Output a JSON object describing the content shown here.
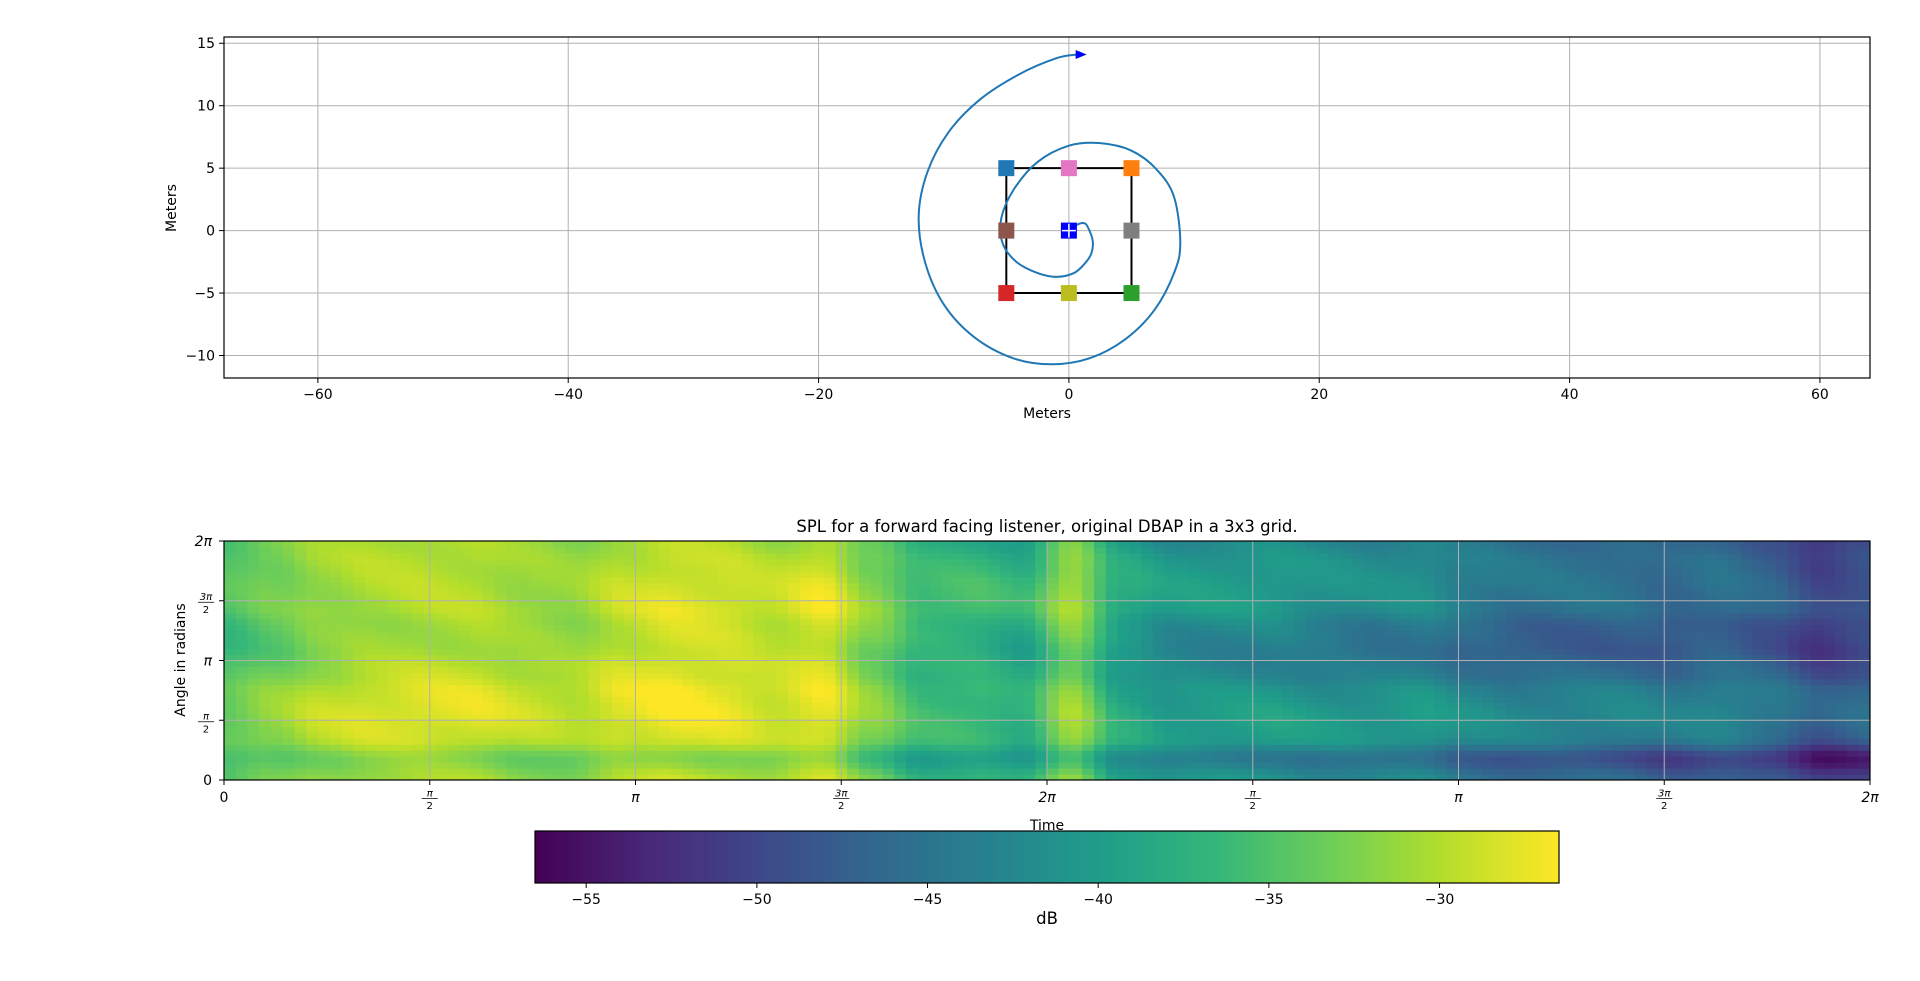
{
  "chart_data": [
    {
      "type": "scatter",
      "xlabel": "Meters",
      "ylabel": "Meters",
      "xlim": [
        -67.5,
        64
      ],
      "ylim": [
        -11.8,
        15.5
      ],
      "xticks": [
        -60,
        -40,
        -20,
        0,
        20,
        40,
        60
      ],
      "xtick_labels": [
        "−60",
        "−40",
        "−20",
        "0",
        "20",
        "40",
        "60"
      ],
      "yticks": [
        -10,
        -5,
        0,
        5,
        10,
        15
      ],
      "ytick_labels": [
        "−10",
        "−5",
        "0",
        "5",
        "10",
        "15"
      ],
      "grid": true,
      "speakers": [
        {
          "x": -5,
          "y": 5,
          "color": "#1f77b4"
        },
        {
          "x": 5,
          "y": 5,
          "color": "#ff7f0e"
        },
        {
          "x": 5,
          "y": -5,
          "color": "#2ca02c"
        },
        {
          "x": -5,
          "y": -5,
          "color": "#d62728"
        },
        {
          "x": -5,
          "y": 0,
          "color": "#8c564b"
        },
        {
          "x": 0,
          "y": 5,
          "color": "#e377c2"
        },
        {
          "x": 5,
          "y": 0,
          "color": "#7f7f7f"
        },
        {
          "x": 0,
          "y": -5,
          "color": "#bcbd22"
        },
        {
          "x": 0,
          "y": 0,
          "color": "#0000ff"
        }
      ],
      "grid_box": {
        "x": [
          -5,
          5,
          5,
          -5,
          -5
        ],
        "y": [
          5,
          5,
          -5,
          -5,
          5
        ],
        "color": "#000000"
      },
      "trajectory": {
        "color": "#1f77b4",
        "x": [
          0.0,
          0.7,
          1.2,
          1.5,
          1.9,
          1.8,
          1.3,
          0.4,
          -1.0,
          -2.5,
          -4.2,
          -5.3,
          -5.4,
          -4.4,
          -2.5,
          0.0,
          2.5,
          5.0,
          7.0,
          8.4,
          8.9,
          8.4,
          6.8,
          4.5,
          1.7,
          -1.4,
          -4.5,
          -7.6,
          -10.0,
          -11.5,
          -12.0,
          -11.3,
          -9.6,
          -7.1,
          -4.0,
          -1.0,
          0.7
        ],
        "y": [
          0.0,
          0.5,
          0.6,
          0.3,
          -0.8,
          -1.8,
          -2.6,
          -3.4,
          -3.7,
          -3.4,
          -2.5,
          -1.0,
          1.0,
          3.3,
          5.5,
          6.8,
          7.0,
          6.4,
          4.9,
          2.7,
          -1.0,
          -3.4,
          -6.4,
          -8.7,
          -10.2,
          -10.7,
          -10.2,
          -8.5,
          -5.9,
          -2.5,
          1.2,
          4.7,
          7.9,
          10.5,
          12.5,
          13.8,
          14.1
        ]
      },
      "direction_marker": {
        "x": 0.7,
        "y": 14.1,
        "color": "#0000ff"
      }
    },
    {
      "type": "heatmap",
      "title": "SPL for a forward facing listener, original DBAP in a 3x3 grid.",
      "xlabel": "Time",
      "ylabel": "Angle in radians",
      "xticks": [
        0,
        0.25,
        0.5,
        0.75,
        1.0,
        1.25,
        1.5,
        1.75,
        2.0
      ],
      "xtick_labels": [
        {
          "num": "",
          "den": "",
          "text": "0"
        },
        {
          "num": "π",
          "den": "2",
          "text": ""
        },
        {
          "num": "",
          "den": "",
          "text": "π"
        },
        {
          "num": "3π",
          "den": "2",
          "text": ""
        },
        {
          "num": "",
          "den": "",
          "text": "2π"
        },
        {
          "num": "π",
          "den": "2",
          "text": ""
        },
        {
          "num": "",
          "den": "",
          "text": "π"
        },
        {
          "num": "3π",
          "den": "2",
          "text": ""
        },
        {
          "num": "",
          "den": "",
          "text": "2π"
        }
      ],
      "yticks": [
        0,
        0.25,
        0.5,
        0.75,
        1.0
      ],
      "ytick_labels": [
        {
          "num": "",
          "den": "",
          "text": "0"
        },
        {
          "num": "π",
          "den": "2",
          "text": ""
        },
        {
          "num": "",
          "den": "",
          "text": "π"
        },
        {
          "num": "3π",
          "den": "2",
          "text": ""
        },
        {
          "num": "",
          "den": "",
          "text": "2π"
        }
      ],
      "grid": true,
      "colormap": "viridis",
      "viridis_stops": [
        "#440154",
        "#482878",
        "#3e4989",
        "#31688e",
        "#26828e",
        "#1f9e89",
        "#35b779",
        "#6ece58",
        "#b5de2b",
        "#fde725"
      ],
      "vmin": -56.5,
      "vmax": -26.5,
      "time_columns": [
        -34.5,
        -32.5,
        -30.5,
        -29.5,
        -29.0,
        -29.0,
        -30.0,
        -30.5,
        -28.5,
        -27.5,
        -28.0,
        -29.0,
        -27.5,
        -32.0,
        -36.0,
        -36.0,
        -37.5,
        -31.0,
        -38.5,
        -40.5,
        -40.5,
        -40.5,
        -41.5,
        -42.0,
        -41.5,
        -43.5,
        -44.5,
        -44.5,
        -44.5,
        -45.5,
        -44.5,
        -46.0,
        -49.0,
        -47.5
      ],
      "angle_rows": [
        -1.0,
        -3.5,
        0.5,
        1.0,
        0.5,
        -1.0,
        -2.0,
        -1.5,
        0.0,
        0.0,
        -0.5,
        -1.5
      ]
    },
    {
      "type": "colorbar",
      "label": "dB",
      "ticks": [
        -55,
        -50,
        -45,
        -40,
        -35,
        -30
      ],
      "tick_labels": [
        "−55",
        "−50",
        "−45",
        "−40",
        "−35",
        "−30"
      ]
    }
  ]
}
